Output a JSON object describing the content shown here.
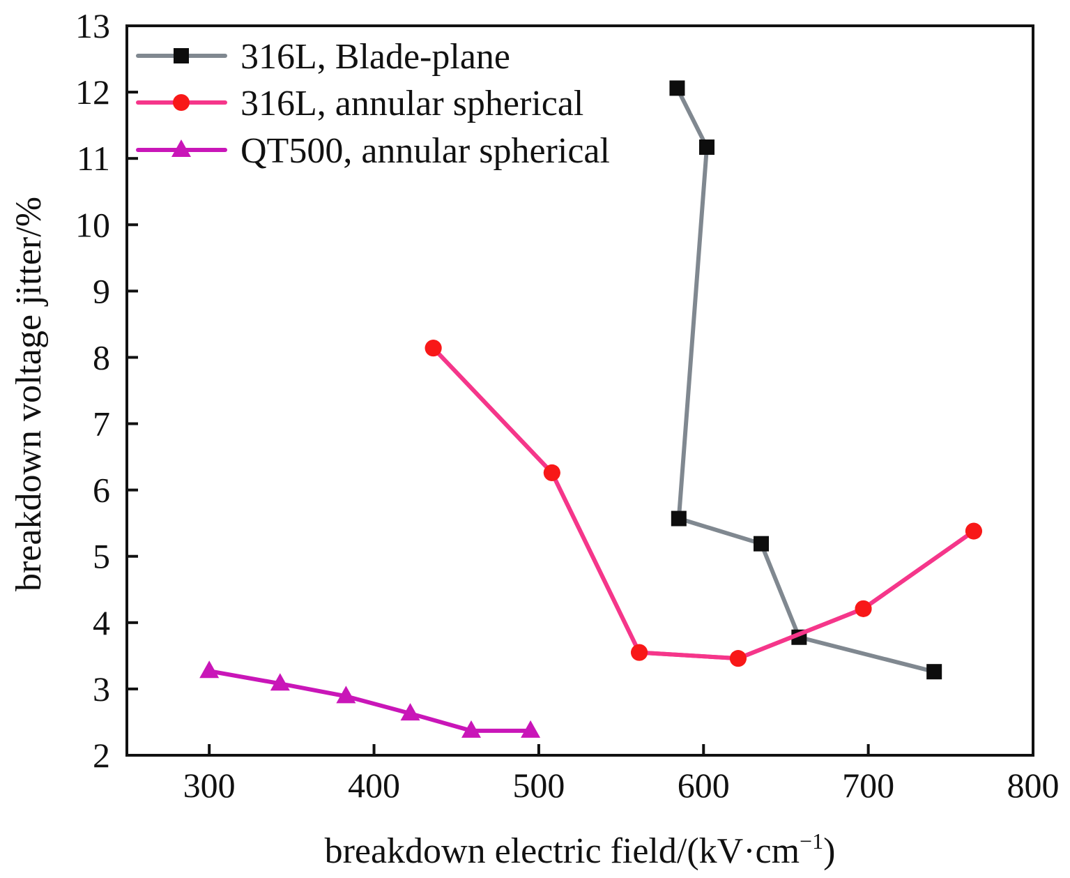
{
  "chart_data": {
    "type": "line",
    "title": "",
    "xlabel": "breakdown electric field/(kV·cm",
    "xlabel_superscript": "−1",
    "xlabel_suffix": ")",
    "ylabel": "breakdown voltage jitter/%",
    "xlim": [
      250,
      800
    ],
    "ylim": [
      2,
      13
    ],
    "xticks": [
      300,
      400,
      500,
      600,
      700,
      800
    ],
    "yticks": [
      2,
      3,
      4,
      5,
      6,
      7,
      8,
      9,
      10,
      11,
      12,
      13
    ],
    "grid": false,
    "legend_position": "top-left",
    "series": [
      {
        "name": "316L, Blade-plane",
        "marker": "square",
        "line_color": "#808890",
        "marker_color": "#0d0d0d",
        "x": [
          584,
          602,
          585,
          635,
          658,
          740
        ],
        "y": [
          12.06,
          11.17,
          5.57,
          5.19,
          3.78,
          3.26
        ]
      },
      {
        "name": "316L, annular spherical",
        "marker": "circle",
        "line_color": "#f5368a",
        "marker_color": "#f81818",
        "x": [
          436,
          508,
          561,
          621,
          697,
          764
        ],
        "y": [
          8.14,
          6.26,
          3.55,
          3.46,
          4.21,
          5.38
        ]
      },
      {
        "name": "QT500, annular spherical",
        "marker": "triangle",
        "line_color": "#c916b8",
        "marker_color": "#c916b8",
        "x": [
          300,
          343,
          383,
          422,
          459,
          495
        ],
        "y": [
          3.27,
          3.08,
          2.89,
          2.63,
          2.37,
          2.37
        ]
      }
    ]
  }
}
